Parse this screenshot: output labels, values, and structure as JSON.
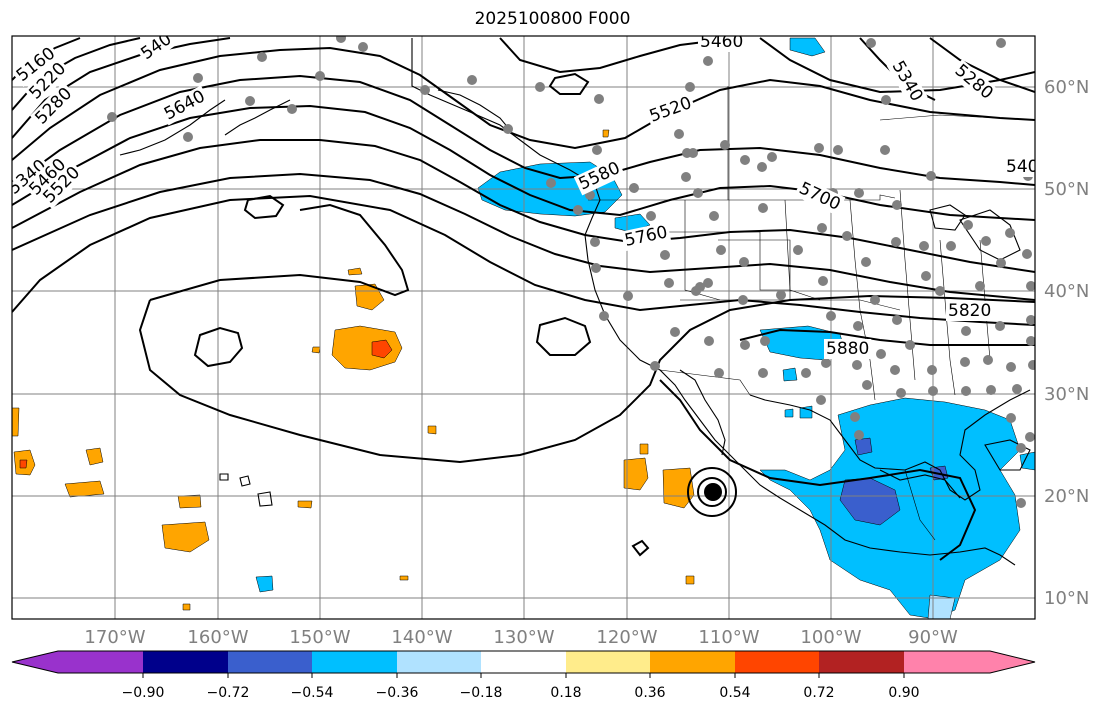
{
  "title": "2025100800 F000",
  "map": {
    "lon_labels": [
      "170°W",
      "160°W",
      "150°W",
      "140°W",
      "130°W",
      "120°W",
      "110°W",
      "100°W",
      "90°W"
    ],
    "lat_labels": [
      "60°N",
      "50°N",
      "40°N",
      "30°N",
      "20°N",
      "10°N"
    ],
    "contour_labels": [
      "5160",
      "5220",
      "5280",
      "540",
      "5640",
      "5340",
      "5460",
      "5520",
      "5460",
      "5520",
      "5580",
      "5700",
      "5760",
      "5820",
      "5880",
      "5340",
      "5280",
      "540"
    ],
    "colors": {
      "land_border": "#000000",
      "grid": "#808080",
      "station": "#808080"
    }
  },
  "colorbar": {
    "tick_labels": [
      "−0.90",
      "−0.72",
      "−0.54",
      "−0.36",
      "−0.18",
      "0.18",
      "0.36",
      "0.54",
      "0.72",
      "0.90"
    ],
    "bins": [
      "#9932cc",
      "#00008b",
      "#3a5fcd",
      "#00bfff",
      "#b0e2ff",
      "#ffffff",
      "#ffec8b",
      "#ffa500",
      "#ff4500",
      "#b22222",
      "#ff82ab"
    ]
  }
}
